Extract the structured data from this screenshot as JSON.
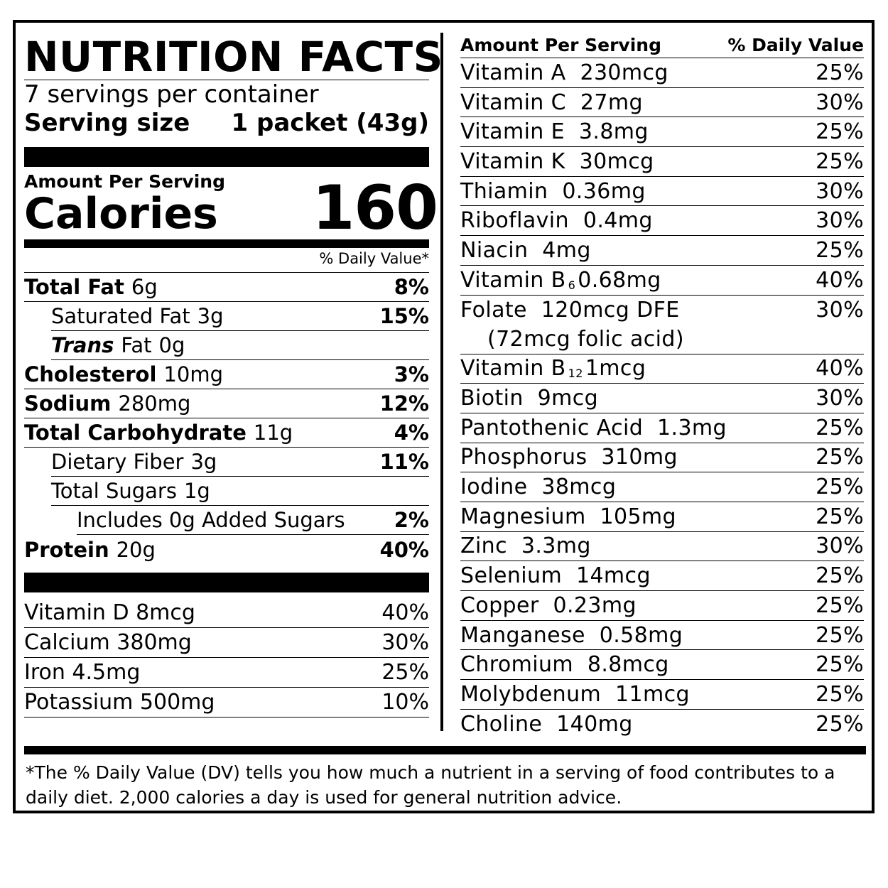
{
  "title": "NUTRITION FACTS",
  "servings_per_container": "7 servings per container",
  "serving_size": {
    "label": "Serving size",
    "value": "1 packet (43g)"
  },
  "amount_per_serving": "Amount Per Serving",
  "calories": {
    "label": "Calories",
    "value": "160"
  },
  "daily_value_header": "% Daily Value*",
  "nutrients": [
    {
      "name": "Total Fat",
      "amount": "6g",
      "dv": "8%",
      "bold": true,
      "indent": 0
    },
    {
      "name": "Saturated Fat",
      "amount": "3g",
      "dv": "15%",
      "bold": false,
      "indent": 1
    },
    {
      "name": "Trans",
      "name_suffix": "Fat",
      "amount": "0g",
      "dv": "",
      "bold": false,
      "indent": 1
    },
    {
      "name": "Cholesterol",
      "amount": "10mg",
      "dv": "3%",
      "bold": true,
      "indent": 0
    },
    {
      "name": "Sodium",
      "amount": "280mg",
      "dv": "12%",
      "bold": true,
      "indent": 0
    },
    {
      "name": "Total Carbohydrate",
      "amount": "11g",
      "dv": "4%",
      "bold": true,
      "indent": 0
    },
    {
      "name": "Dietary Fiber",
      "amount": "3g",
      "dv": "11%",
      "bold": false,
      "indent": 1
    },
    {
      "name": "Total Sugars",
      "amount": "1g",
      "dv": "",
      "bold": false,
      "indent": 1
    },
    {
      "name": "Includes 0g Added Sugars",
      "amount": "",
      "dv": "2%",
      "bold": false,
      "indent": 2
    },
    {
      "name": "Protein",
      "amount": "20g",
      "dv": "40%",
      "bold": true,
      "indent": 0
    }
  ],
  "left_vitamins": [
    {
      "text": "Vitamin D 8mcg",
      "dv": "40%"
    },
    {
      "text": "Calcium 380mg",
      "dv": "30%"
    },
    {
      "text": "Iron 4.5mg",
      "dv": "25%"
    },
    {
      "text": "Potassium 500mg",
      "dv": "10%"
    }
  ],
  "right_header": {
    "left": "Amount Per Serving",
    "right": "% Daily Value"
  },
  "right_vitamins": [
    {
      "name": "Vitamin A",
      "amount": "230mcg",
      "dv": "25%"
    },
    {
      "name": "Vitamin C",
      "amount": "27mg",
      "dv": "30%"
    },
    {
      "name": "Vitamin E",
      "amount": "3.8mg",
      "dv": "25%"
    },
    {
      "name": "Vitamin K",
      "amount": "30mcg",
      "dv": "25%"
    },
    {
      "name": "Thiamin",
      "amount": "0.36mg",
      "dv": "30%"
    },
    {
      "name": "Riboflavin",
      "amount": "0.4mg",
      "dv": "30%"
    },
    {
      "name": "Niacin",
      "amount": "4mg",
      "dv": "25%"
    },
    {
      "name": "Vitamin B",
      "sub": "6",
      "amount": "0.68mg",
      "dv": "40%"
    },
    {
      "name": "Folate",
      "amount": "120mcg DFE",
      "line2": "(72mcg folic acid)",
      "dv": "30%"
    },
    {
      "name": "Vitamin B",
      "sub": "12",
      "amount": "1mcg",
      "dv": "40%"
    },
    {
      "name": "Biotin",
      "amount": "9mcg",
      "dv": "30%"
    },
    {
      "name": "Pantothenic Acid",
      "amount": "1.3mg",
      "dv": "25%"
    },
    {
      "name": "Phosphorus",
      "amount": "310mg",
      "dv": "25%"
    },
    {
      "name": "Iodine",
      "amount": "38mcg",
      "dv": "25%"
    },
    {
      "name": "Magnesium",
      "amount": "105mg",
      "dv": "25%"
    },
    {
      "name": "Zinc",
      "amount": "3.3mg",
      "dv": "30%"
    },
    {
      "name": "Selenium",
      "amount": "14mcg",
      "dv": "25%"
    },
    {
      "name": "Copper",
      "amount": "0.23mg",
      "dv": "25%"
    },
    {
      "name": "Manganese",
      "amount": "0.58mg",
      "dv": "25%"
    },
    {
      "name": "Chromium",
      "amount": "8.8mcg",
      "dv": "25%"
    },
    {
      "name": "Molybdenum",
      "amount": "11mcg",
      "dv": "25%"
    },
    {
      "name": "Choline",
      "amount": "140mg",
      "dv": "25%"
    }
  ],
  "footnote": "*The % Daily Value (DV) tells you how much a nutrient in a serving of food contributes to a daily diet. 2,000 calories a day is used for general nutrition advice."
}
